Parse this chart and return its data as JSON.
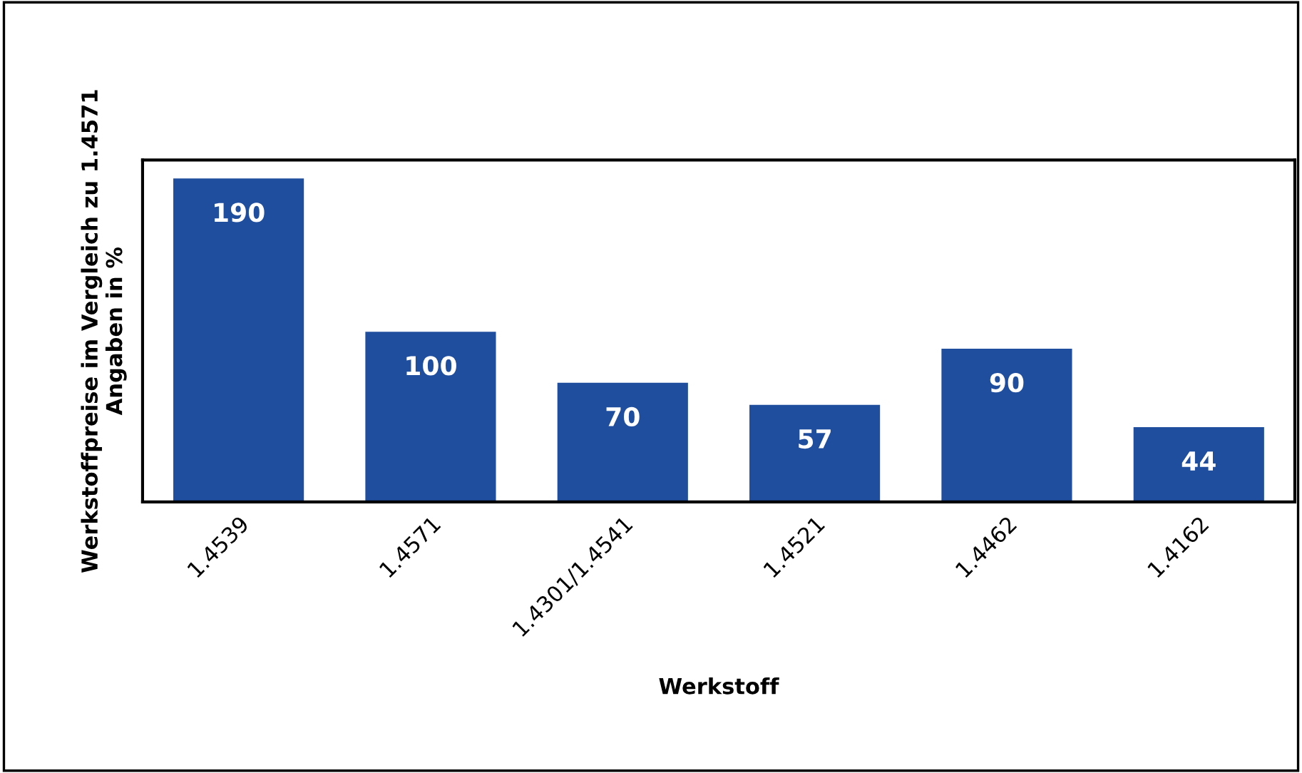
{
  "chart_data": {
    "type": "bar",
    "xlabel": "Werkstoff",
    "ylabel": "Werkstoffpreise im Vergleich zu 1.4571\nAngaben in %",
    "categories": [
      "1.4539",
      "1.4571",
      "1.4301/1.4541",
      "1.4521",
      "1.4462",
      "1.4162"
    ],
    "values": [
      190,
      100,
      70,
      57,
      90,
      44
    ],
    "color": "#1f4e9e",
    "data_labels": true,
    "grid": false
  }
}
